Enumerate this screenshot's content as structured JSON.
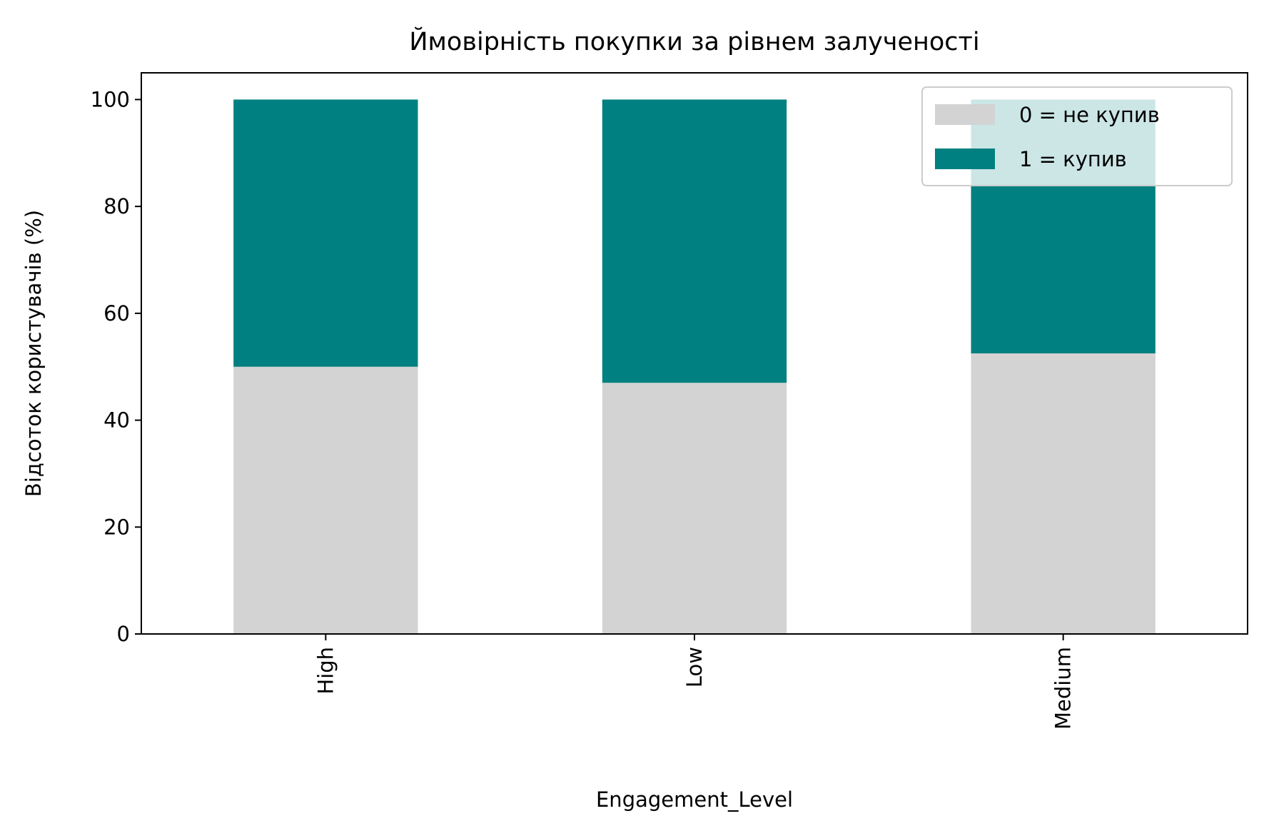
{
  "chart_data": {
    "type": "bar",
    "stacked": true,
    "title": "Ймовірність покупки за рівнем залученості",
    "xlabel": "Engagement_Level",
    "ylabel": "Відсоток користувачів (%)",
    "categories": [
      "High",
      "Low",
      "Medium"
    ],
    "ylim": [
      0,
      105
    ],
    "yticks": [
      0,
      20,
      40,
      60,
      80,
      100
    ],
    "grid": false,
    "legend_position": "top-right",
    "series": [
      {
        "name": "0 = не купив",
        "color": "#d3d3d3",
        "values": [
          50.0,
          47.0,
          52.5
        ]
      },
      {
        "name": "1 = купив",
        "color": "#008080",
        "values": [
          50.0,
          53.0,
          47.5
        ]
      }
    ]
  }
}
